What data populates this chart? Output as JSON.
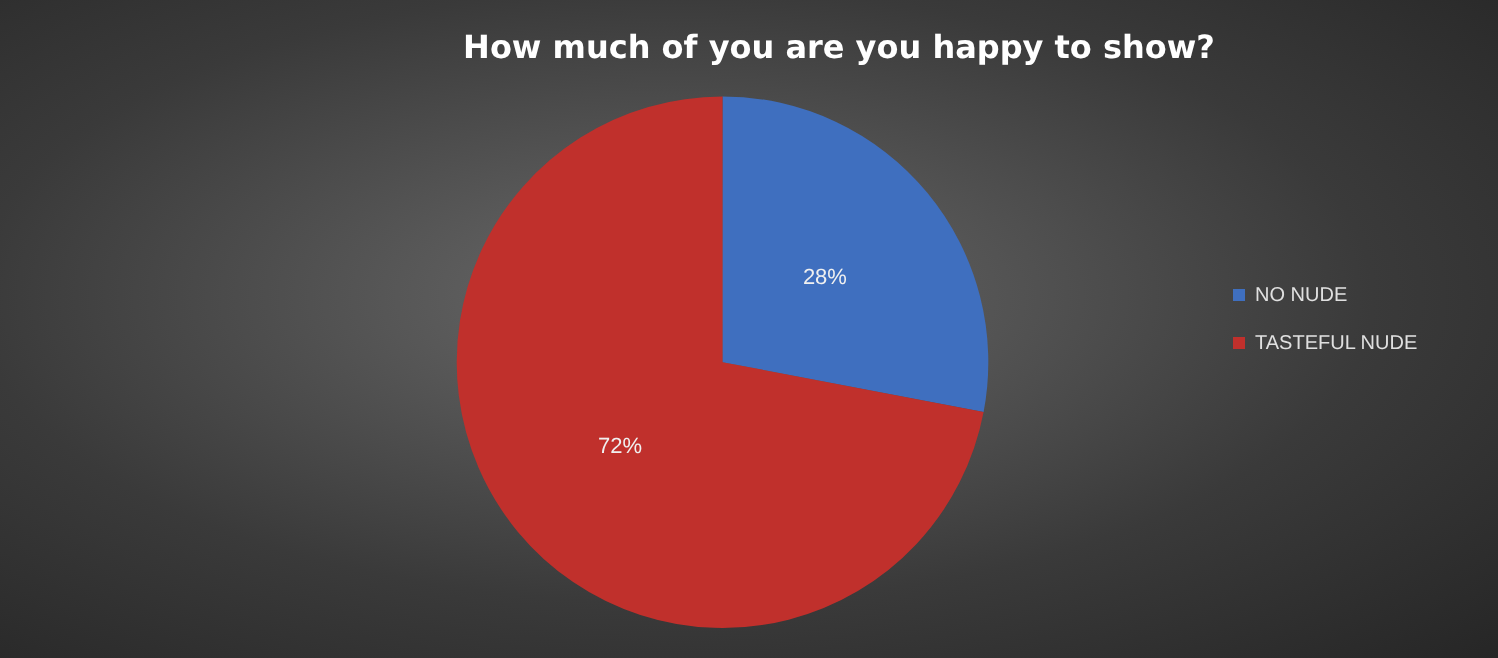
{
  "chart_data": {
    "type": "pie",
    "title": "How much of you are you happy to show?",
    "categories": [
      "NO NUDE",
      "TASTEFUL NUDE"
    ],
    "values": [
      28,
      72
    ],
    "colors": [
      "#3f6fbf",
      "#c0302c"
    ],
    "value_labels": [
      "28%",
      "72%"
    ],
    "legend": "right"
  }
}
